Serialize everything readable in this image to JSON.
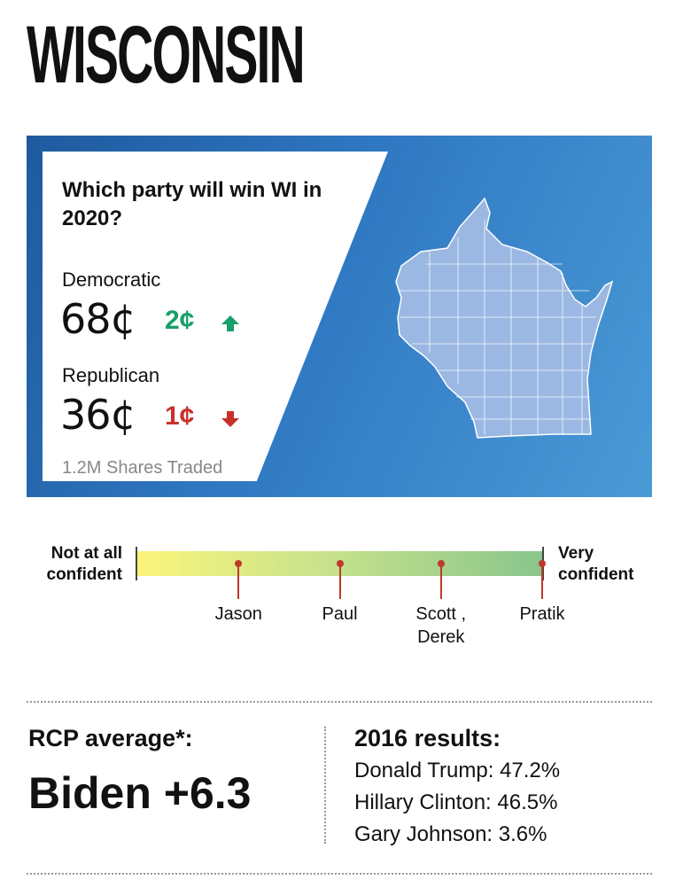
{
  "title": "WISCONSIN",
  "market": {
    "question": "Which party will win WI in 2020?",
    "democratic": {
      "label": "Democratic",
      "price": "68¢",
      "change": "2¢",
      "direction": "up"
    },
    "republican": {
      "label": "Republican",
      "price": "36¢",
      "change": "1¢",
      "direction": "down"
    },
    "shares": "1.2M Shares Traded"
  },
  "confidence": {
    "left_label": "Not at all confident",
    "right_label": "Very confident",
    "people": [
      {
        "name": "Jason",
        "level": 0.25
      },
      {
        "name": "Paul",
        "level": 0.5
      },
      {
        "name": "Scott , Derek",
        "level": 0.75
      },
      {
        "name": "Pratik",
        "level": 1.0
      }
    ]
  },
  "rcp": {
    "label": "RCP average*:",
    "value": "Biden +6.3"
  },
  "results_2016": {
    "title": "2016 results:",
    "items": [
      "Donald Trump: 47.2%",
      "Hillary Clinton: 46.5%",
      "Gary Johnson: 3.6%"
    ]
  },
  "colors": {
    "up": "#17a06a",
    "down": "#c8312b",
    "map_fill": "#9bb8e3",
    "banner": "#2f78c2"
  }
}
